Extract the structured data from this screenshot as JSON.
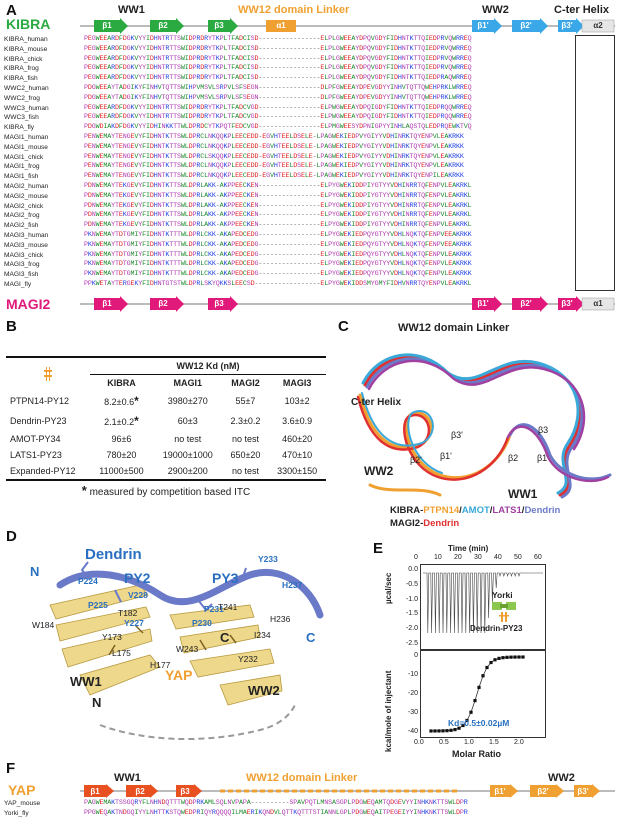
{
  "panels": [
    "A",
    "B",
    "C",
    "D",
    "E",
    "F"
  ],
  "panelA": {
    "top_label": "KIBRA",
    "bottom_label": "MAGI2",
    "domain_labels": {
      "ww1": "WW1",
      "linker": "WW12 domain Linker",
      "ww2": "WW2",
      "cter": "C-ter Helix"
    },
    "top_strands": [
      "β1",
      "β2",
      "β3",
      "α1",
      "β1'",
      "β2'",
      "β3'",
      "α2"
    ],
    "bottom_strands": [
      "β1",
      "β2",
      "β3",
      "β1'",
      "β2'",
      "β3'",
      "α1"
    ],
    "rows": [
      {
        "name": "KIBRA_human",
        "seq": "PEGWEEARDFDGKVYYIDHNTRTTSWIDPRDRYTKPLTFADCISD----------------ELPLGWEEAYDPQVGDYFIDHNTKTTQIEDPRVQWRREQ"
      },
      {
        "name": "KIBRA_mouse",
        "seq": "PEGWEEARDFDGKVYYIDHNTRTTSWIDPRDRYTKPLTFADCISD----------------ELPLGWEEAYDPQVGDYFIDHNTKTTQIEDPRVQWRREQ"
      },
      {
        "name": "KIBRA_chick",
        "seq": "PEGWEEARDFDGKVYYIDHNTRTTSWIDPRDRYTKPLTFADCISD----------------ELPLGWEEAYDPQVGDYFIDHNTKTTQIEDPRVQWRREQ"
      },
      {
        "name": "KIBRA_frog",
        "seq": "PEGWEEARDFDGKVYYIDHNTRTTSWIDPRDRYTKPLTFADCISD----------------ELPLGWEEAYDPQVGDYFIDHNTKTTQIEDPRVQWRREQ"
      },
      {
        "name": "KIBRA_fish",
        "seq": "PEGWEEARDFDGKVYYIDHNTRTTSWIDPRDRYTKPLTFADCISD----------------ELPLGWEEAYDPQVGDYFIDHNTKTTQIEDPRAQWRREQ"
      },
      {
        "name": "WWC2_human",
        "seq": "PDGWEEAYTADGIKYFINHVTQTTSWIHPVMSVLSRPVLSFSEGN----------------DLPFGWEEAYDPEVGDYYINHVTQTTQWEHPRKLWRREQ"
      },
      {
        "name": "WWC2_frog",
        "seq": "PDGWEEAYTADGIKYFINHVTQTTSWIHPVMSVLSRPVLSFSEGN----------------DLPFGWEEAYDPEVGDYYINHVTQTTQWEHPRKLWRREQ"
      },
      {
        "name": "WWC3_human",
        "seq": "PEGWEEARDFDGKVYYIDHNTRTTSWIDPRDRYTKPLTFADCVGD----------------ELPWGWEEAYDPQIGDYFIDHNTKTTQIEDPRQQWRREQ"
      },
      {
        "name": "WWC3_fish",
        "seq": "PEGWEEARDFDGKVYYIDHNTRTTSWIDPRDRYTKPLTFADCVGD----------------ELPWGWEEAYDPQIGDYFIDHNTKTTQIEDPRQQWRREQ"
      },
      {
        "name": "KIBRA_fly",
        "seq": "PDGWDIAKDFDGKVYYIDHINKKTTWLDPRDCYTKPQTFEDCVGD----------------ELPMGWEESYDPNIGPYYINHLAQSTQLEDPRQEWKTVQ"
      },
      {
        "name": "MAGI1_human",
        "seq": "PENWEMAYTENGEVYFIDHNTKTTSWLDPRCLNKQQKPLEECEDD-EGVHTEELDSELE-LPAGWEKIEDPVYGIYYVDHINRKTQYENPVLEAKRKK"
      },
      {
        "name": "MAGI1_mouse",
        "seq": "PENWEMAYTENGEVYFIDHNTKTTSWLDPRCLNKQQKPLEECEDD-EGVHTEELDSELE-LPAGWEKIEDPVYGIYYVDHINRKTQYENPVLEAKRKK"
      },
      {
        "name": "MAGI1_chick",
        "seq": "PENWEMAYTENGEVYFIDHNTKTTSWLDPRCLSKQQKPLEECEDD-EGVHTEELDSELE-LPAGWEKIEDPVYGIYYVDHINRKTQYENPVLEAKRKK"
      },
      {
        "name": "MAGI1_frog",
        "seq": "PENWEMAYTENGEVYFIDHNTKTTSWLDPRCLNKQQKPLEECEDD-EGVHTEELDSELE-LPAGWEKIEDPVYGIYYVDHINRKTQYENPVLEAKRKK"
      },
      {
        "name": "MAGI1_fish",
        "seq": "PENWEMAYTENGEVYFIDHNTKTTSWLDPRCLNKQQKPLEECEDD-EGVHTEELDSELE-LPAGWEKIEDPVYGIYYVDHINRKTQYENPILEAKRKK"
      },
      {
        "name": "MAGI2_human",
        "seq": "PDNWEMAYTEKGEVYFIDHNTKTTSWLDPRLAKK-AKPPEECKEN----------------ELPYGWEKIDDPIYGTYYVDHINRRTQFENPVLEAKRKL"
      },
      {
        "name": "MAGI2_mouse",
        "seq": "PDNWEMAYTEKGEVYFIDHNTKTTSWLDPRLAKK-AKPPEECKEN----------------ELPYGWEKIDDPIYGTYYVDHINRRTQFENPVLEAKRKL"
      },
      {
        "name": "MAGI2_chick",
        "seq": "PDNWEMAYTEKGEVYFIDHNTKTTSWLDPRLAKK-AKPPEECKEN----------------ELPYGWEKIDDPIYGTYYVDHINRRTQFENPVLEAKRKL"
      },
      {
        "name": "MAGI2_frog",
        "seq": "PDNWEMAYTEKGEVYFIDHNTKTTSWLDPRLAKK-AKPPEECKEN----------------ELPYGWEKIDDPIYGTYYVDHINRRTQFENPVLEAKRKL"
      },
      {
        "name": "MAGI2_fish",
        "seq": "PDNWEMAYTEKGEVYFIDHNTKTTSWLDPRLAKK-AKPPEECKEN----------------ELPYGWEKIDDPIYGTYYVDHINRRTQFENPVLEAKRKL"
      },
      {
        "name": "MAGI3_human",
        "seq": "PKNWEMAYTDTGMIYFIDHNTKTTTWLDPRLCKK-AKAPEDCEDG----------------ELPYGWEKIEDPQYGTYYVDHLNQKTQFENPVEEAKRKK"
      },
      {
        "name": "MAGI3_mouse",
        "seq": "PKNWEMAYTDTGMIYFIDHNTKTTTWLDPRLCKK-AKAPEDCEDG----------------ELPYGWEKIEDPQYGTYYVDHLNQKTQFENPVEEAKRKK"
      },
      {
        "name": "MAGI3_chick",
        "seq": "PKNWEMAYTDTGMIYFIDHNTKTTTWLDPRLCKK-AKAPEDCEDG----------------ELPYGWEKIEDPQYGTYYVDHLNQKTQFENPVLEAKRKK"
      },
      {
        "name": "MAGI3_frog",
        "seq": "PKNWEMAYTDTGMIYFIDHNTKTTTWLDPRLCKK-AKAPEDCEDG----------------ELPYGWEKIEDPQYGTYYVDHLNQKTQFENPVLEAKRKK"
      },
      {
        "name": "MAGI3_fish",
        "seq": "PKNWEMAYTDTGMIYFIDHNTKTTTWLDPRLCKK-AKAPEDCEDG----------------ELPYGWEKIEDPQYGTYYVDHLNQKTQFENPVLEAKRKK"
      },
      {
        "name": "MAGI_fly",
        "seq": "PPKWETAYTERGEKYFIDHNTGTSTWLDPRLSKYQKKSLEECSD-----------------ELPYGWEKIDDSMYGMYFIDHVNRRTQYENPVLEAKRKL"
      }
    ]
  },
  "panelB": {
    "header_group": "WW12 Kd (nM)",
    "columns": [
      "KIBRA",
      "MAGI1",
      "MAGI2",
      "MAGI3"
    ],
    "rows": [
      {
        "ligand": "PTPN14-PY12",
        "vals": [
          "8.2±0.6",
          "3980±270",
          "55±7",
          "103±2"
        ],
        "star": true
      },
      {
        "ligand": "Dendrin-PY23",
        "vals": [
          "2.1±0.2",
          "60±3",
          "2.3±0.2",
          "3.6±0.9"
        ],
        "star": true
      },
      {
        "ligand": "AMOT-PY34",
        "vals": [
          "96±6",
          "no test",
          "no test",
          "460±20"
        ],
        "star": false
      },
      {
        "ligand": "LATS1-PY23",
        "vals": [
          "780±20",
          "19000±1000",
          "650±20",
          "470±10"
        ],
        "star": false
      },
      {
        "ligand": "Expanded-PY12",
        "vals": [
          "11000±500",
          "2900±200",
          "no test",
          "3300±150"
        ],
        "star": false
      }
    ],
    "star_symbol": "*",
    "footnote": "measured by competition based ITC"
  },
  "panelC": {
    "labels": {
      "linker": "WW12 domain Linker",
      "helix": "C-ter Helix",
      "ww2": "WW2",
      "ww1": "WW1",
      "b3p": "β3'",
      "b2p": "β2'",
      "b1p": "β1'",
      "b3": "β3",
      "b2": "β2",
      "b1": "β1"
    },
    "legend_line1": [
      {
        "text": "KIBRA-",
        "color": "#222222"
      },
      {
        "text": "PTPN14",
        "color": "#f0a030"
      },
      {
        "text": "/",
        "color": "#222222"
      },
      {
        "text": "AMOT",
        "color": "#3aa8d8"
      },
      {
        "text": "/",
        "color": "#222222"
      },
      {
        "text": "LATS1",
        "color": "#a040a0"
      },
      {
        "text": "/",
        "color": "#222222"
      },
      {
        "text": "Dendrin",
        "color": "#6a7ac8"
      }
    ],
    "legend_line2": [
      {
        "text": "MAGI2-",
        "color": "#222222"
      },
      {
        "text": "Dendrin",
        "color": "#e03030"
      }
    ]
  },
  "panelD": {
    "title": "Dendrin",
    "yap": "YAP",
    "labels": {
      "N_top": "N",
      "C_right": "C",
      "C_mid": "C",
      "N_bottom": "N",
      "ww1": "WW1",
      "ww2": "WW2",
      "py2": "PY2",
      "py3": "PY3"
    },
    "residues_blue": [
      "P224",
      "V228",
      "P225",
      "Y227",
      "P231",
      "P230",
      "Y233",
      "H237"
    ],
    "residues_black": [
      "W184",
      "T182",
      "Y173",
      "L175",
      "H177",
      "T241",
      "W243",
      "Y232",
      "I234",
      "H236"
    ]
  },
  "panelE": {
    "time_label": "Time (min)",
    "time_ticks": [
      "0",
      "10",
      "20",
      "30",
      "40",
      "50",
      "60"
    ],
    "y_top_label": "µcal/sec",
    "y_top_ticks": [
      "0.0",
      "-0.5",
      "-1.0",
      "-1.5",
      "-2.0",
      "-2.5"
    ],
    "y_bot_label": "kcal/mole of injectant",
    "y_bot_ticks": [
      "0",
      "-10",
      "-20",
      "-30",
      "-40"
    ],
    "x_label": "Molar Ratio",
    "x_ticks": [
      "0.0",
      "0.5",
      "1.0",
      "1.5",
      "2.0"
    ],
    "protein": "Yorki",
    "peptide": "Dendrin-PY23",
    "kd": "Kd=0.5±0.02µM"
  },
  "panelF": {
    "yap": "YAP",
    "labels": {
      "ww1": "WW1",
      "linker": "WW12 domain Linker",
      "ww2": "WW2"
    },
    "strands": [
      "β1",
      "β2",
      "β3",
      "β1'",
      "β2'",
      "β3'"
    ],
    "rows": [
      {
        "name": "YAP_mouse",
        "seq": "PAGWEMAKTSSGQRYFLNHNDQTTTWQDPRKAMLSQLNVPAPA----------SPAVPQTLMNSASGPLPDGWEQAMTQDGEVYYINHKNKTTSWLDPR"
      },
      {
        "name": "Yorki_fly",
        "seq": "PPGWEQAKTNDGQIYYLNHTTKSTQWEDPRIQYRQQQQILMAERIKQNDVLQTTKQTTTSTIANNLGPLPDGWEQAITPEGEIYYINHKNKTTSWLDPR"
      }
    ]
  }
}
